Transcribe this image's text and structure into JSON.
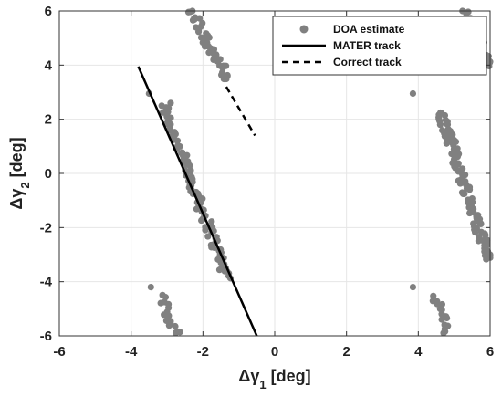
{
  "chart_data": {
    "type": "scatter",
    "xlim": [
      -6,
      6
    ],
    "ylim": [
      -6,
      6
    ],
    "xticks": [
      -6,
      -4,
      -2,
      0,
      2,
      4,
      6
    ],
    "yticks": [
      -6,
      -4,
      -2,
      0,
      2,
      4,
      6
    ],
    "grid": true,
    "legend_position": "top-right",
    "xlabel": {
      "main": "Δγ",
      "sub": "1",
      "unit": " [deg]"
    },
    "ylabel": {
      "main": "Δγ",
      "sub": "2",
      "unit": " [deg]"
    },
    "colors": {
      "points": "#808080",
      "lines": "#000000",
      "grid": "#e6e6e6"
    },
    "series": [
      {
        "name": "DOA estimate",
        "kind": "points",
        "bands": [
          {
            "from": [
              -3.1,
              2.5
            ],
            "to": [
              -1.3,
              -3.9
            ],
            "n": 110
          },
          {
            "from": [
              -2.3,
              6.0
            ],
            "to": [
              -1.3,
              3.4
            ],
            "n": 45
          },
          {
            "from": [
              -3.2,
              -4.5
            ],
            "to": [
              -2.7,
              -6.0
            ],
            "n": 18
          },
          {
            "from": [
              4.6,
              2.3
            ],
            "to": [
              6.0,
              -3.2
            ],
            "n": 110
          },
          {
            "from": [
              5.3,
              6.0
            ],
            "to": [
              6.0,
              3.9
            ],
            "n": 40
          },
          {
            "from": [
              4.5,
              -4.5
            ],
            "to": [
              4.8,
              -6.0
            ],
            "n": 16
          }
        ],
        "outliers": [
          [
            -3.5,
            2.95
          ],
          [
            -3.45,
            -4.2
          ],
          [
            3.85,
            2.95
          ],
          [
            3.85,
            -4.2
          ],
          [
            -2.9,
            2.6
          ]
        ]
      },
      {
        "name": "MATER track",
        "kind": "solid",
        "points": [
          [
            -3.8,
            3.95
          ],
          [
            -0.5,
            -6.0
          ]
        ]
      },
      {
        "name": "Correct track",
        "kind": "dashed",
        "points": [
          [
            -1.35,
            3.2
          ],
          [
            -0.55,
            1.4
          ]
        ]
      }
    ]
  }
}
